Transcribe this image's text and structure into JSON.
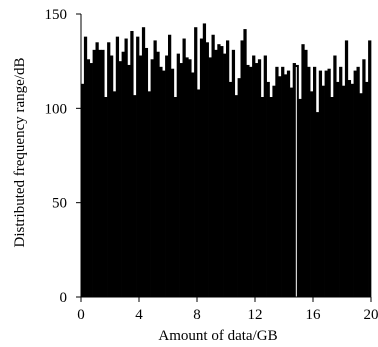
{
  "chart_data": {
    "type": "bar",
    "xlabel": "Amount of data/GB",
    "ylabel": "Distributed frequency range/dB",
    "xlim": [
      0,
      20
    ],
    "ylim": [
      0,
      150
    ],
    "x_ticks": [
      0,
      4,
      8,
      12,
      16,
      20
    ],
    "x_tick_labels": [
      "0",
      "4",
      "8",
      "12",
      "16",
      "20"
    ],
    "y_ticks": [
      0,
      50,
      100,
      150
    ],
    "y_tick_labels": [
      "0",
      "50",
      "100",
      "150"
    ],
    "grid": false,
    "bar_color": "#000000",
    "gap_color": "#ffffff",
    "series": [
      {
        "values": [
          113,
          138,
          126,
          124,
          131,
          135,
          131,
          131,
          106,
          135,
          128,
          109,
          138,
          125,
          130,
          137,
          123,
          141,
          107,
          138,
          128,
          143,
          132,
          109,
          126,
          136,
          130,
          122,
          120,
          128,
          139,
          121,
          106,
          129,
          124,
          137,
          127,
          126,
          119,
          143,
          110,
          137,
          145,
          135,
          127,
          139,
          131,
          134,
          133,
          129,
          136,
          114,
          131,
          107,
          116,
          136,
          142,
          123,
          122,
          128,
          124,
          126,
          106,
          128,
          114,
          106,
          112,
          122,
          117,
          122,
          118,
          120,
          111,
          124,
          123,
          105,
          134,
          131,
          122,
          109,
          122,
          98,
          120,
          112,
          120,
          121,
          106,
          128,
          114,
          122,
          112,
          136,
          115,
          113,
          120,
          122,
          108,
          126,
          114,
          136
        ]
      }
    ]
  }
}
